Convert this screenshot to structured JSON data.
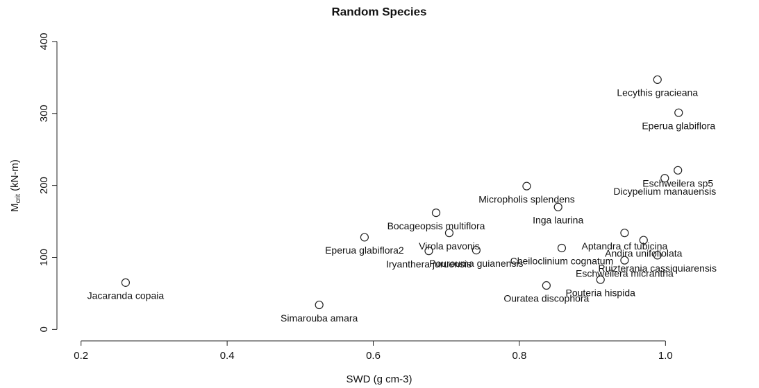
{
  "chart_data": {
    "type": "scatter",
    "title": "Random Species",
    "x_label": "SWD (g cm-3)",
    "y_label": "M",
    "y_label_sub": "crit",
    "y_label_rest": " (kN-m)",
    "x": [
      0.261,
      0.526,
      0.588,
      0.686,
      0.704,
      0.676,
      0.741,
      0.81,
      0.853,
      0.858,
      0.944,
      0.944,
      0.97,
      0.989,
      0.911,
      0.837,
      0.999,
      1.017,
      0.989,
      1.018
    ],
    "values": [
      65,
      34,
      128,
      162,
      134,
      109,
      110,
      199,
      170,
      113,
      96,
      134,
      124,
      103,
      69,
      61,
      210,
      221,
      347,
      301
    ],
    "labels": [
      "Jacaranda copaia",
      "Simarouba amara",
      "Eperua glabiflora2",
      "Bocageopsis multiflora",
      "Virola pavonis",
      "Iryanthera juruensis",
      "Pourouma guianensis",
      "Micropholis splendens",
      "Inga laurina",
      "Cheiloclinium cognatum",
      "Eschweilera micrantha",
      "Aptandra cf tubicina",
      "Andira unifoliolata",
      "Ruizterania cassiquiarensis",
      "Pouteria hispida",
      "Ouratea discophora",
      "Dicypelium manauensis",
      "Eschweilera sp5",
      "Lecythis gracieana",
      "Eperua glabiflora"
    ],
    "color": "#222222",
    "xlim": [
      0.167,
      1.128
    ],
    "ylim": [
      -16,
      448
    ],
    "xticks": [
      0.2,
      0.4,
      0.6,
      0.8,
      {
        "value": 1,
        "label": "1.0"
      }
    ],
    "yticks": [
      0,
      100,
      200,
      300,
      400
    ]
  }
}
